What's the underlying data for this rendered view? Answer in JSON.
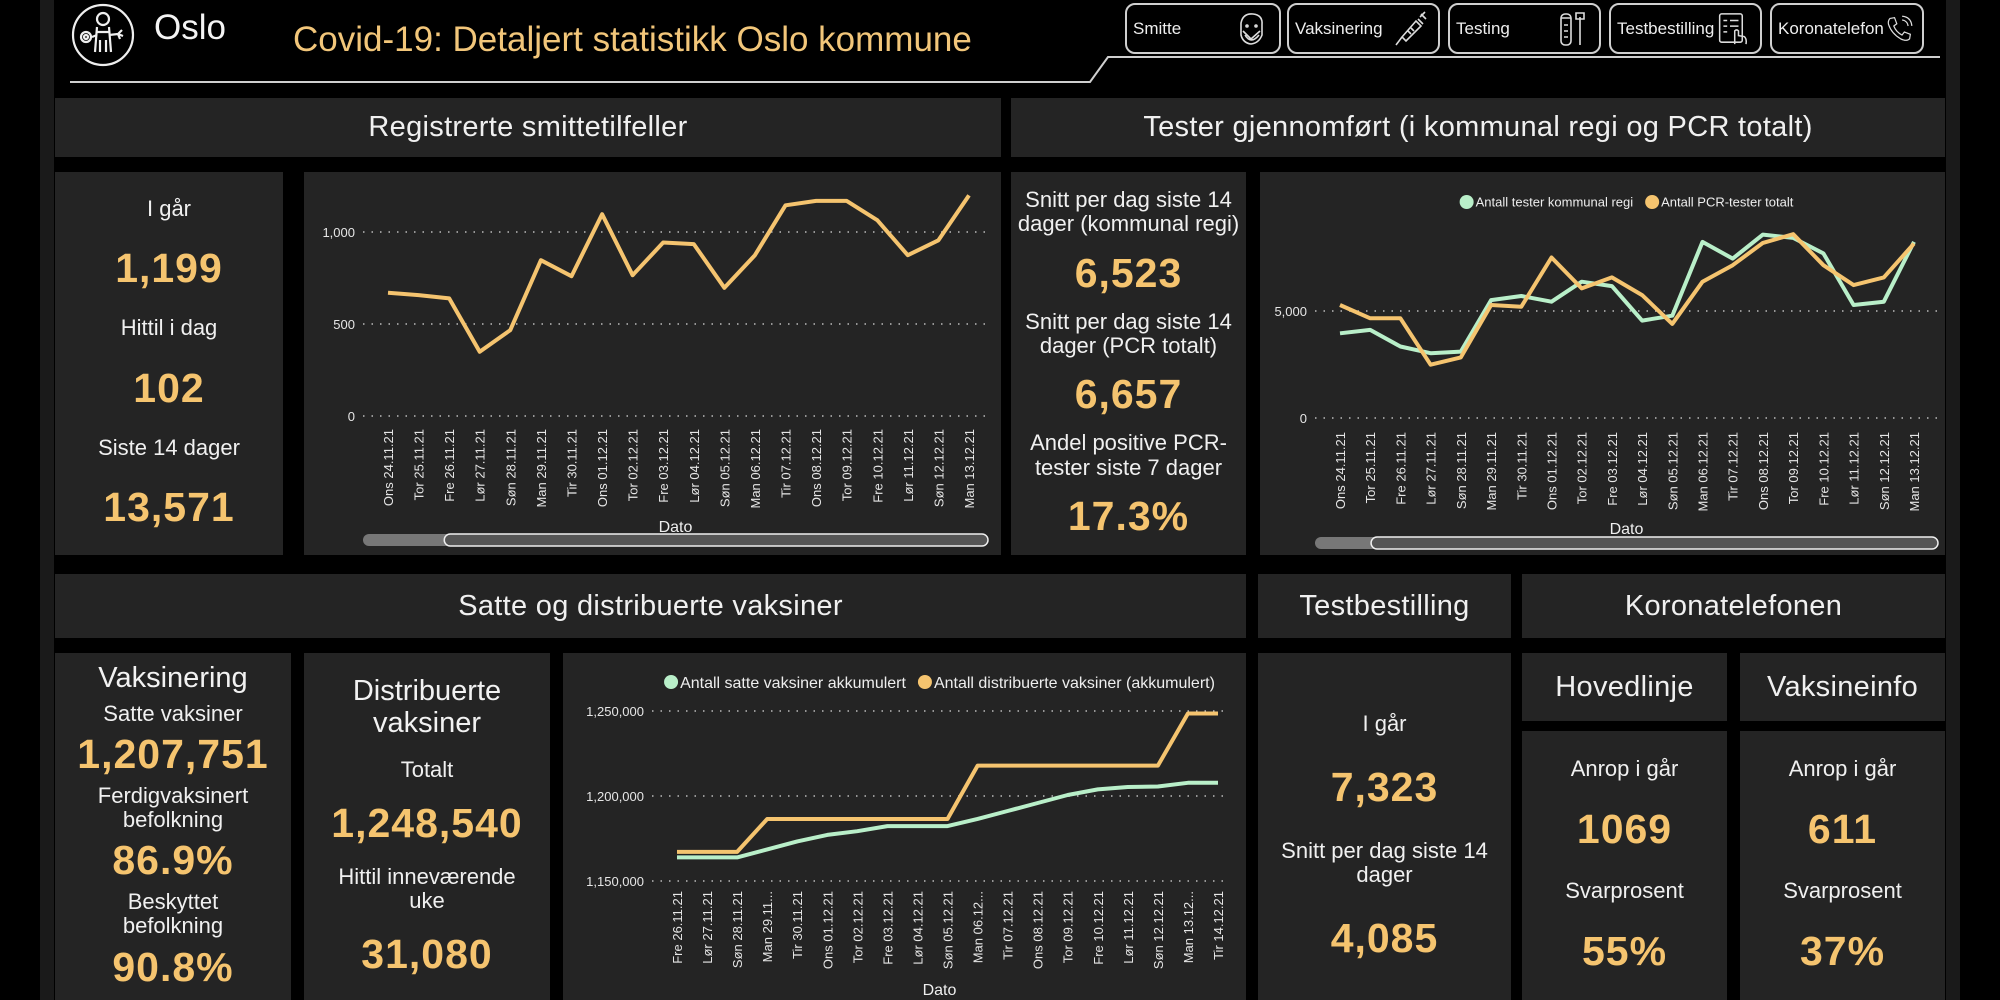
{
  "header": {
    "logo_text": "Oslo",
    "title": "Covid-19: Detaljert statistikk Oslo kommune"
  },
  "nav": [
    {
      "label": "Smitte",
      "icon": "face-mask-icon"
    },
    {
      "label": "Vaksinering",
      "icon": "syringe-icon"
    },
    {
      "label": "Testing",
      "icon": "test-tube-icon"
    },
    {
      "label": "Testbestilling",
      "icon": "clipboard-hand-icon"
    },
    {
      "label": "Koronatelefon",
      "icon": "phone-icon"
    }
  ],
  "colors": {
    "accent": "#f5c46f",
    "green": "#b9efc9",
    "panel": "#242424"
  },
  "smitte": {
    "heading": "Registrerte smittetilfeller",
    "kpis": [
      {
        "label": "I går",
        "value": "1,199"
      },
      {
        "label": "Hittil i dag",
        "value": "102"
      },
      {
        "label": "Siste 14 dager",
        "value": "13,571"
      }
    ]
  },
  "tester": {
    "heading": "Tester gjennomført (i kommunal regi og PCR totalt)",
    "kpis": [
      {
        "label": "Snitt per dag siste 14 dager (kommunal regi)",
        "value": "6,523"
      },
      {
        "label": "Snitt per dag siste 14 dager (PCR totalt)",
        "value": "6,657"
      },
      {
        "label": "Andel positive PCR-tester siste 7 dager",
        "value": "17.3%"
      }
    ]
  },
  "vaksiner": {
    "heading": "Satte og distribuerte vaksiner",
    "vaksinering": {
      "title": "Vaksinering",
      "satte_label": "Satte vaksiner",
      "satte_value": "1,207,751",
      "ferdig_label": "Ferdigvaksinert befolkning",
      "ferdig_value": "86.9%",
      "beskyttet_label": "Beskyttet befolkning",
      "beskyttet_value": "90.8%"
    },
    "distribuerte": {
      "title": "Distribuerte vaksiner",
      "totalt_label": "Totalt",
      "totalt_value": "1,248,540",
      "uke_label": "Hittil inneværende uke",
      "uke_value": "31,080"
    }
  },
  "testbestilling": {
    "heading": "Testbestilling",
    "igar_label": "I går",
    "igar_value": "7,323",
    "snitt_label": "Snitt per dag siste 14 dager",
    "snitt_value": "4,085"
  },
  "koronatelefonen": {
    "heading": "Koronatelefonen",
    "lines": [
      {
        "title": "Hovedlinje",
        "calls_label": "Anrop i går",
        "calls_value": "1069",
        "rate_label": "Svarprosent",
        "rate_value": "55%"
      },
      {
        "title": "Vaksineinfo",
        "calls_label": "Anrop i går",
        "calls_value": "611",
        "rate_label": "Svarprosent",
        "rate_value": "37%"
      }
    ]
  },
  "chart_data": [
    {
      "type": "line",
      "title": "",
      "xlabel": "Dato",
      "ylabel": "",
      "ylim": [
        0,
        1250
      ],
      "yticks": [
        0,
        500,
        1000
      ],
      "ytick_labels": [
        "0",
        "500",
        "1,000"
      ],
      "grid": true,
      "legend": "none",
      "scrollbar": {
        "start": 0.13,
        "end": 1.0
      },
      "categories": [
        "Ons 24.11.21",
        "Tor 25.11.21",
        "Fre 26.11.21",
        "Lør 27.11.21",
        "Søn 28.11.21",
        "Man 29.11.21",
        "Tir 30.11.21",
        "Ons 01.12.21",
        "Tor 02.12.21",
        "Fre 03.12.21",
        "Lør 04.12.21",
        "Søn 05.12.21",
        "Man 06.12.21",
        "Tir 07.12.21",
        "Ons 08.12.21",
        "Tor 09.12.21",
        "Fre 10.12.21",
        "Lør 11.12.21",
        "Søn 12.12.21",
        "Man 13.12.21"
      ],
      "series": [
        {
          "color": "#f5c46f",
          "values": [
            670,
            657,
            639,
            349,
            467,
            847,
            760,
            1097,
            765,
            943,
            934,
            697,
            874,
            1145,
            1169,
            1169,
            1064,
            874,
            955,
            1199
          ]
        }
      ]
    },
    {
      "type": "line",
      "title": "",
      "xlabel": "Dato",
      "ylabel": "",
      "ylim": [
        0,
        9500
      ],
      "yticks": [
        0,
        5000
      ],
      "ytick_labels": [
        "0",
        "5,000"
      ],
      "grid": true,
      "legend": "top",
      "scrollbar": {
        "start": 0.09,
        "end": 1.0
      },
      "categories": [
        "Ons 24.11.21",
        "Tor 25.11.21",
        "Fre 26.11.21",
        "Lør 27.11.21",
        "Søn 28.11.21",
        "Man 29.11.21",
        "Tir 30.11.21",
        "Ons 01.12.21",
        "Tor 02.12.21",
        "Fre 03.12.21",
        "Lør 04.12.21",
        "Søn 05.12.21",
        "Man 06.12.21",
        "Tir 07.12.21",
        "Ons 08.12.21",
        "Tor 09.12.21",
        "Fre 10.12.21",
        "Lør 11.12.21",
        "Søn 12.12.21",
        "Man 13.12.21"
      ],
      "series": [
        {
          "name": "Antall tester kommunal regi",
          "color": "#b9efc9",
          "values": [
            3960,
            4115,
            3340,
            3030,
            3105,
            5510,
            5700,
            5435,
            6370,
            6165,
            4550,
            4780,
            8230,
            7450,
            8570,
            8415,
            7690,
            5280,
            5435,
            8230
          ]
        },
        {
          "name": "Antall PCR-tester totalt",
          "color": "#f5c46f",
          "values": [
            5280,
            4660,
            4660,
            2490,
            2830,
            5280,
            5200,
            7500,
            6055,
            6570,
            5745,
            4395,
            6370,
            7140,
            8180,
            8590,
            7140,
            6210,
            6570,
            8150
          ]
        }
      ]
    },
    {
      "type": "line",
      "title": "",
      "xlabel": "Dato",
      "ylabel": "",
      "ylim": [
        1150000,
        1260000
      ],
      "yticks": [
        1150000,
        1200000,
        1250000
      ],
      "ytick_labels": [
        "1,150,000",
        "1,200,000",
        "1,250,000"
      ],
      "grid": true,
      "legend": "top",
      "categories": [
        "Fre 26.11.21",
        "Lør 27.11.21",
        "Søn 28.11.21",
        "Man 29.11...",
        "Tir 30.11.21",
        "Ons 01.12.21",
        "Tor 02.12.21",
        "Fre 03.12.21",
        "Lør 04.12.21",
        "Søn 05.12.21",
        "Man 06.12...",
        "Tir 07.12.21",
        "Ons 08.12.21",
        "Tor 09.12.21",
        "Fre 10.12.21",
        "Lør 11.12.21",
        "Søn 12.12.21",
        "Man 13.12...",
        "Tir 14.12.21"
      ],
      "series": [
        {
          "name": "Antall satte vaksiner akkumulert",
          "color": "#b9efc9",
          "values": [
            1163900,
            1163900,
            1163900,
            1168600,
            1173300,
            1177100,
            1179300,
            1182300,
            1182300,
            1182300,
            1186500,
            1191200,
            1195900,
            1200600,
            1203900,
            1205300,
            1205600,
            1207751,
            1207751
          ]
        },
        {
          "name": "Antall distribuerte vaksiner (akkumulert)",
          "color": "#f5c46f",
          "values": [
            1167100,
            1167100,
            1167100,
            1186460,
            1186460,
            1186460,
            1186460,
            1186460,
            1186460,
            1186460,
            1217860,
            1217860,
            1217860,
            1217860,
            1217860,
            1217860,
            1217860,
            1248540,
            1248540
          ]
        }
      ]
    }
  ]
}
